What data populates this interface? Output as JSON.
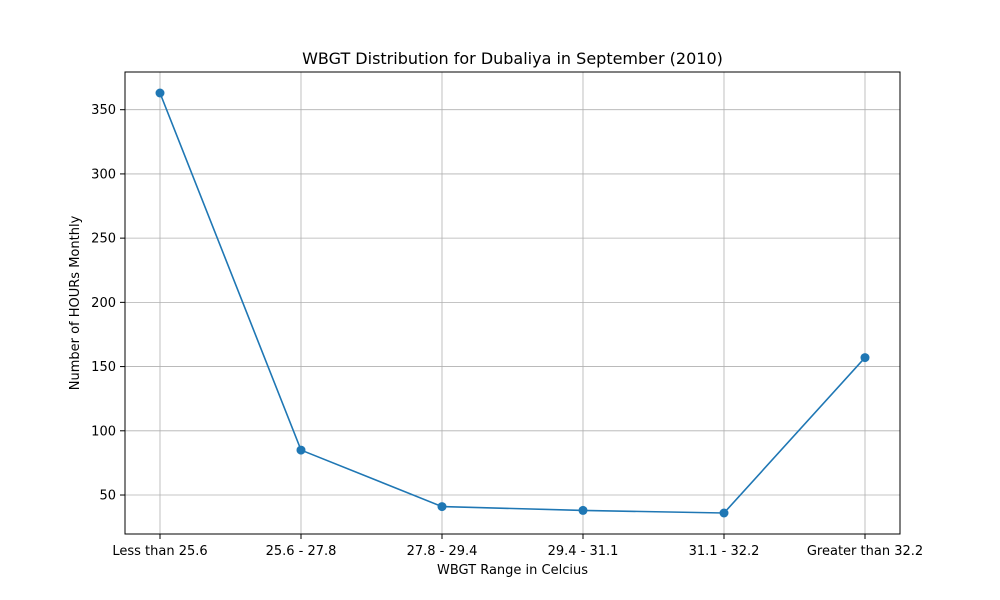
{
  "chart_data": {
    "type": "line",
    "title": "WBGT Distribution for Dubaliya in September (2010)",
    "xlabel": "WBGT Range in Celcius",
    "ylabel": "Number of HOURs Monthly",
    "categories": [
      "Less than 25.6",
      "25.6 - 27.8",
      "27.8 - 29.4",
      "29.4 - 31.1",
      "31.1 - 32.2",
      "Greater than 32.2"
    ],
    "series": [
      {
        "values": [
          363,
          85,
          41,
          38,
          36,
          157
        ],
        "color": "#1f77b4",
        "marker": "circle"
      }
    ],
    "ylim": [
      19.65,
      379.35
    ],
    "yticks": [
      50,
      100,
      150,
      200,
      250,
      300,
      350
    ],
    "grid": true,
    "legend": "none"
  }
}
